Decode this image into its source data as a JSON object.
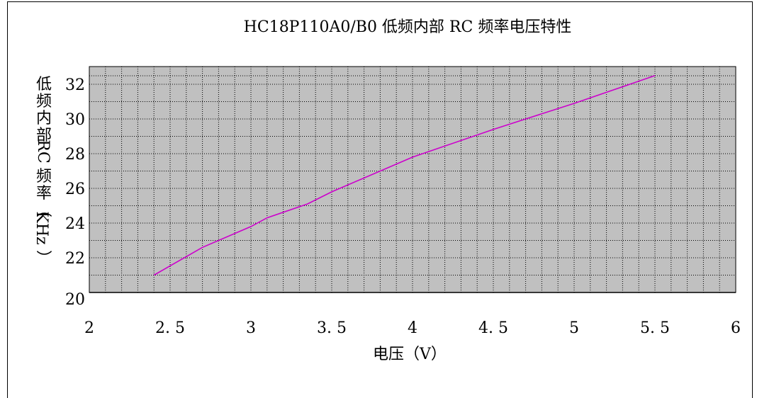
{
  "chart_data": {
    "type": "line",
    "title": "HC18P110A0/B0 低频内部 RC 频率电压特性",
    "xlabel": "电压（V）",
    "ylabel": "低频内部 RC 频率（KHz）",
    "xlim": [
      2,
      6
    ],
    "ylim": [
      20,
      33
    ],
    "x_ticks": [
      "2",
      "2.5",
      "3",
      "3.5",
      "4",
      "4.5",
      "5",
      "5.5",
      "6"
    ],
    "y_ticks": [
      "20",
      "22",
      "24",
      "26",
      "28",
      "30",
      "32"
    ],
    "grid": true,
    "series": [
      {
        "color": "#cc00cc",
        "x": [
          2.4,
          2.7,
          3.0,
          3.1,
          3.35,
          3.5,
          4.0,
          4.5,
          4.7,
          5.0,
          5.5
        ],
        "y": [
          21.0,
          22.6,
          23.8,
          24.3,
          25.1,
          25.8,
          27.8,
          29.4,
          30.0,
          30.9,
          32.5
        ]
      }
    ]
  },
  "colors": {
    "plot_background": "#c0c0c0",
    "grid": "#000000",
    "line": "#cc00cc"
  }
}
